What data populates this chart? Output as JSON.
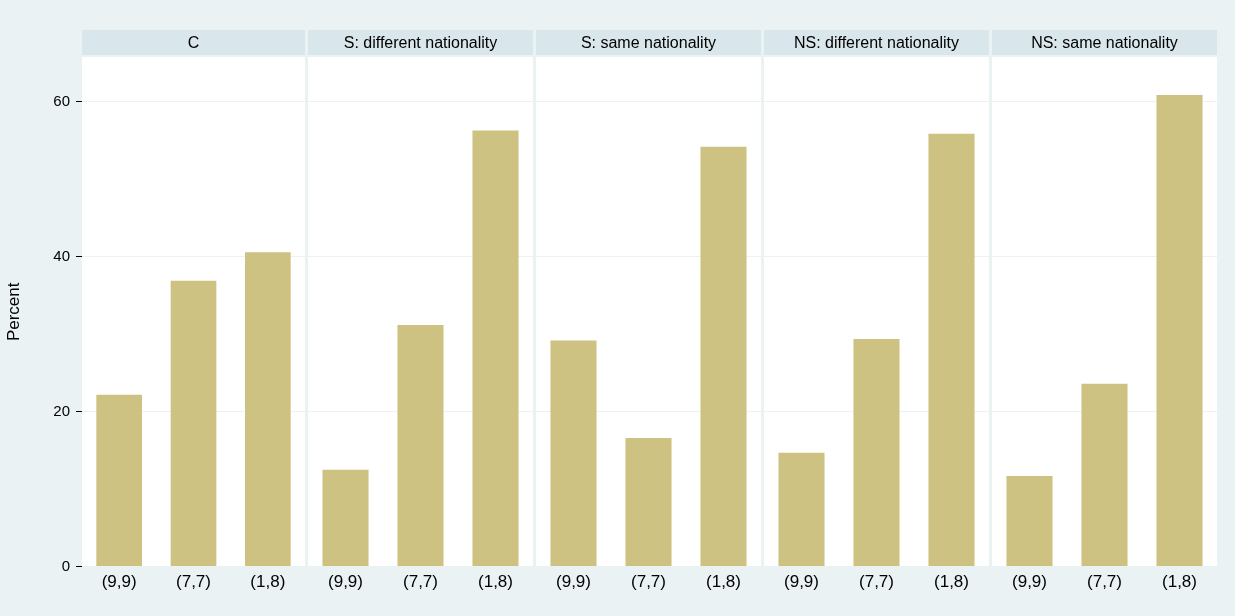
{
  "chart_data": [
    {
      "type": "bar",
      "title": "C",
      "ylabel": "Percent",
      "categories": [
        "(9,9)",
        "(7,7)",
        "(1,8)"
      ],
      "values": [
        22.2,
        36.9,
        40.6
      ],
      "color": "#cdc282",
      "ylim": [
        0,
        65.8
      ],
      "yticks": [
        0,
        20,
        40,
        60
      ],
      "grid": "y"
    },
    {
      "type": "bar",
      "title": "S: different nationality",
      "categories": [
        "(9,9)",
        "(7,7)",
        "(1,8)"
      ],
      "values": [
        12.5,
        31.2,
        56.3
      ],
      "color": "#cdc282",
      "ylim": [
        0,
        65.8
      ],
      "yticks": [
        0,
        20,
        40,
        60
      ],
      "grid": "y",
      "tick_labels": "x"
    },
    {
      "type": "bar",
      "title": "S: same nationality",
      "categories": [
        "(9,9)",
        "(7,7)",
        "(1,8)"
      ],
      "values": [
        29.2,
        16.6,
        54.2
      ],
      "color": "#cdc282",
      "ylim": [
        0,
        65.8
      ],
      "yticks": [
        0,
        20,
        40,
        60
      ],
      "grid": "y",
      "tick_labels": "x"
    },
    {
      "type": "bar",
      "title": "NS: different nationality",
      "categories": [
        "(9,9)",
        "(7,7)",
        "(1,8)"
      ],
      "values": [
        14.7,
        29.4,
        55.9
      ],
      "color": "#cdc282",
      "ylim": [
        0,
        65.8
      ],
      "yticks": [
        0,
        20,
        40,
        60
      ],
      "grid": "y",
      "tick_labels": "x"
    },
    {
      "type": "bar",
      "title": "NS: same nationality",
      "categories": [
        "(9,9)",
        "(7,7)",
        "(1,8)"
      ],
      "values": [
        11.7,
        23.6,
        60.9
      ],
      "color": "#cdc282",
      "ylim": [
        0,
        65.8
      ],
      "yticks": [
        0,
        20,
        40,
        60
      ],
      "grid": "y",
      "tick_labels": "x"
    }
  ]
}
